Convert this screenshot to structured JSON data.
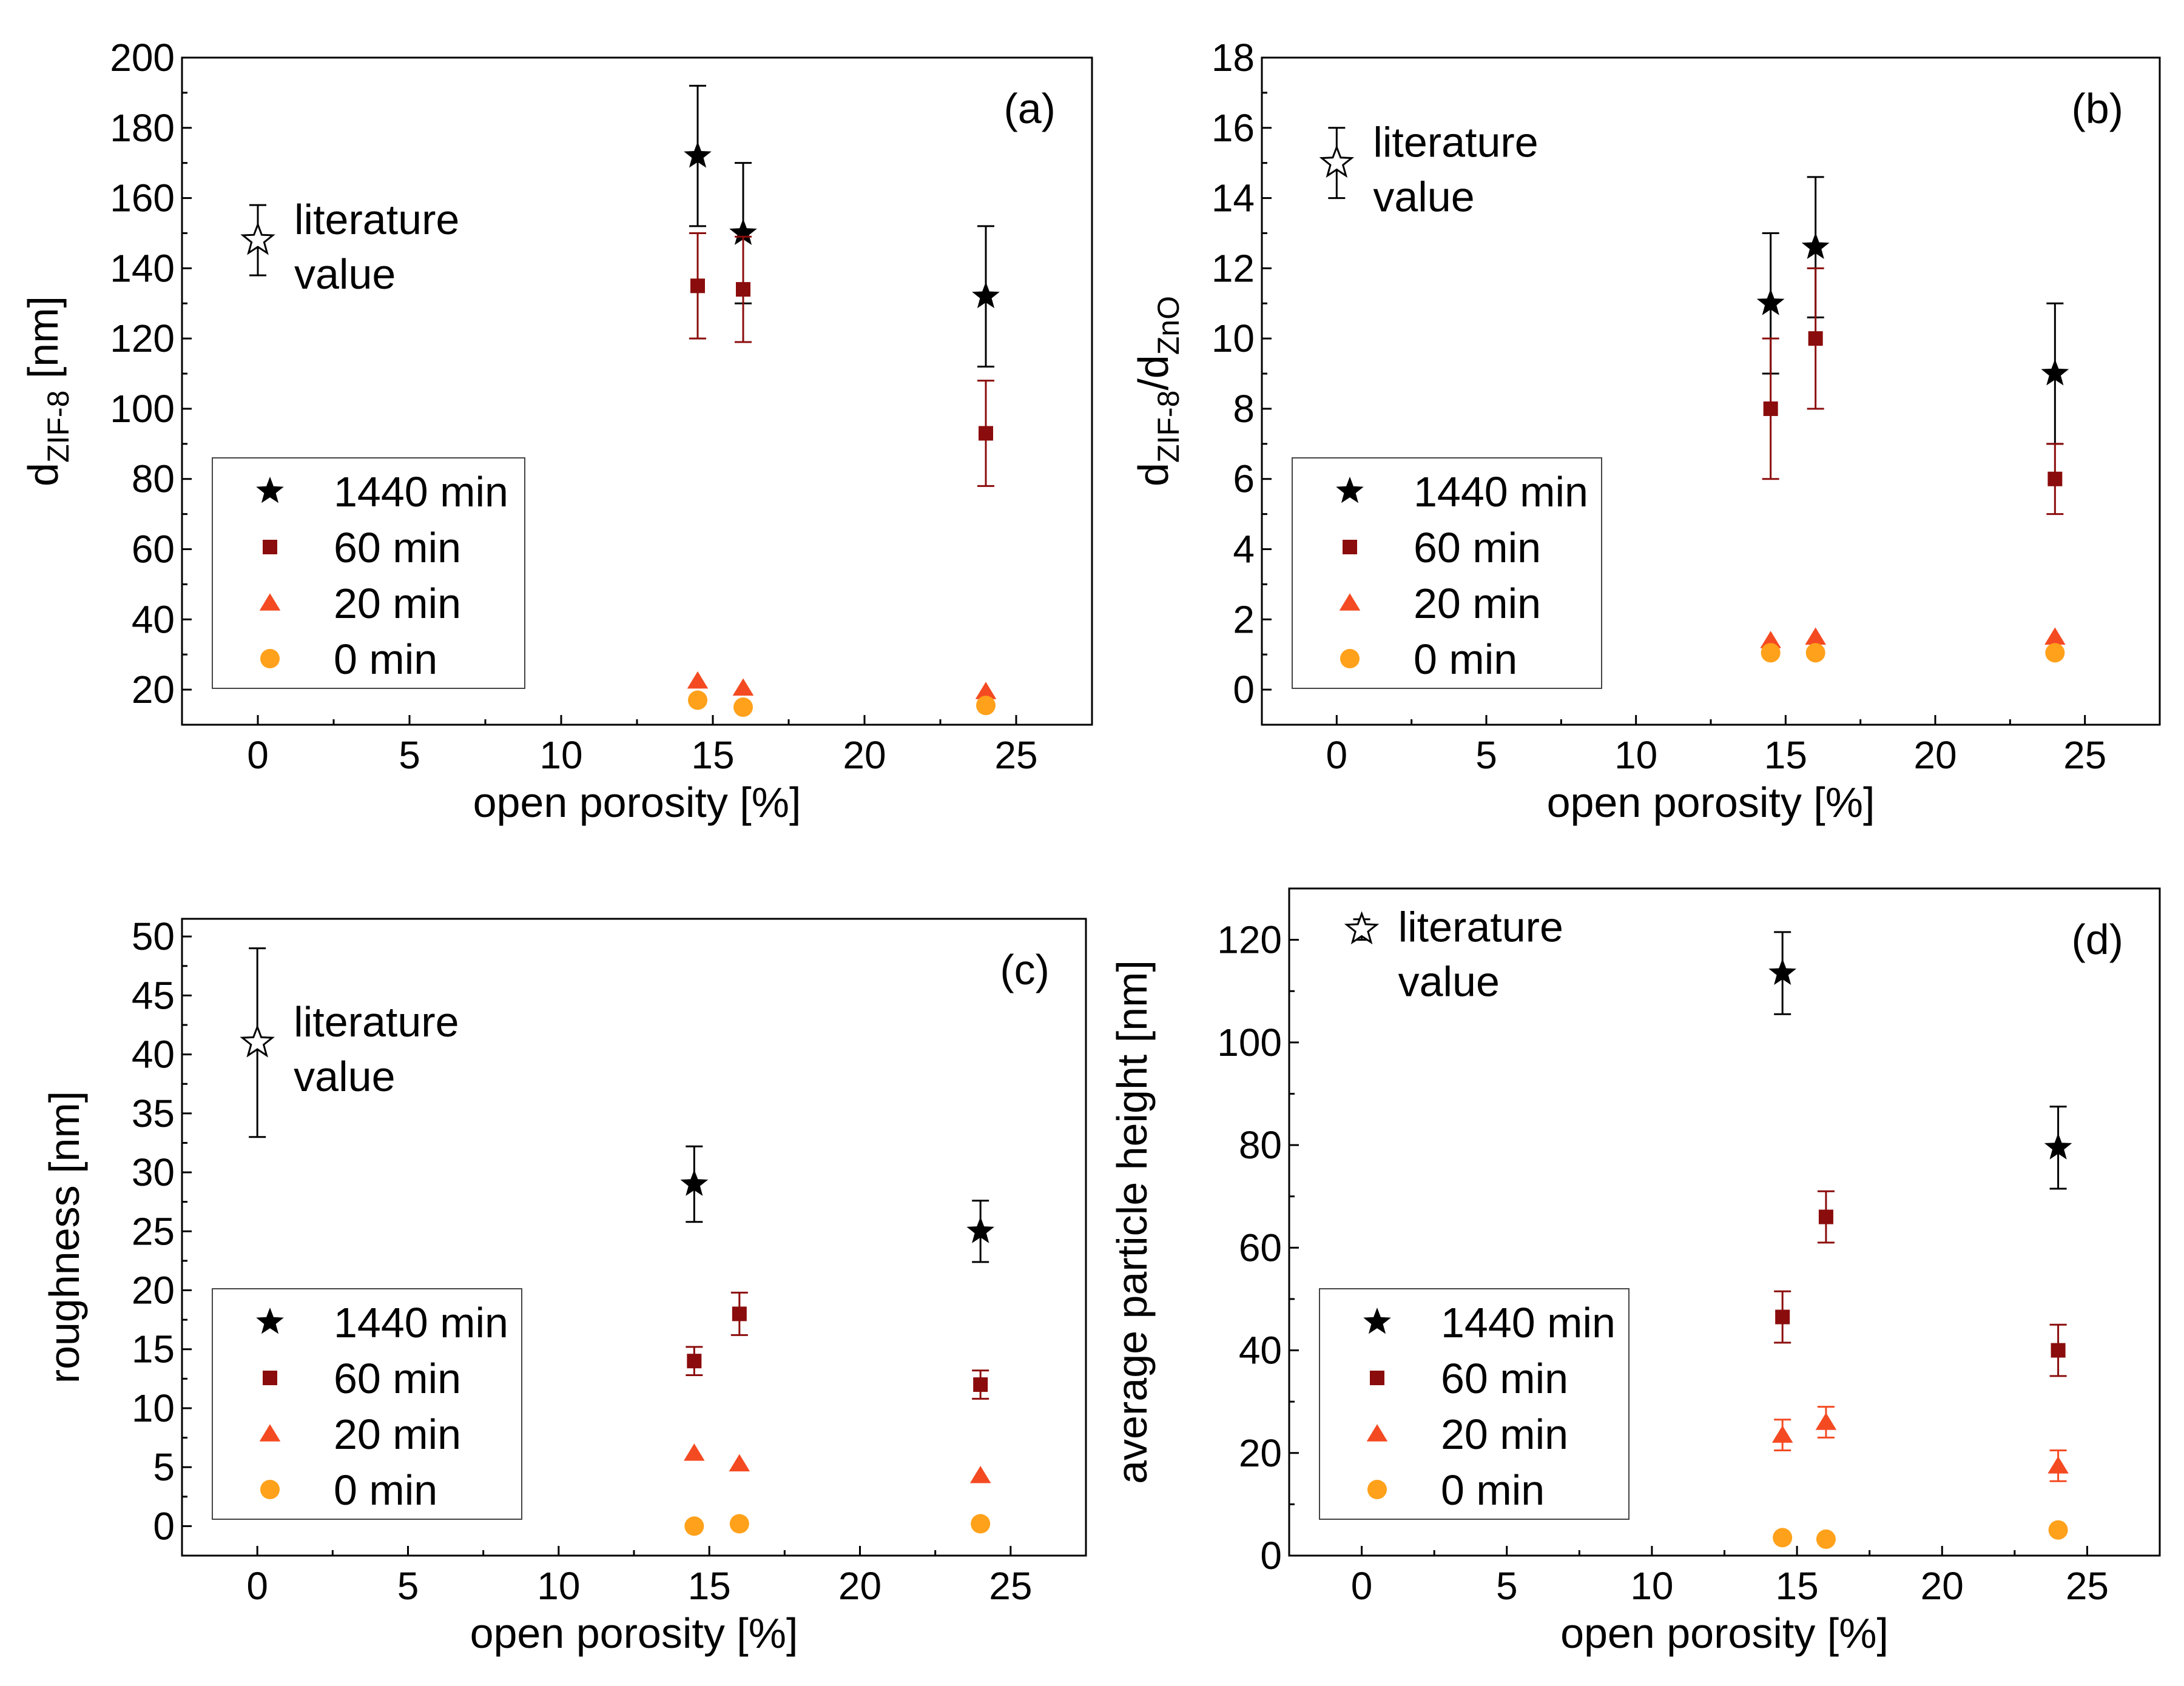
{
  "colors": {
    "1440": "#000000",
    "60": "#8b0c0c",
    "20": "#f44a22",
    "0": "#ffa11a",
    "axis": "#000000",
    "background": "#ffffff"
  },
  "chart_data": [
    {
      "type": "scatter",
      "panel": "(a)",
      "xlabel": "open porosity [%]",
      "ylabel": {
        "main": "d",
        "sub": "ZIF-8",
        "suffix": " [nm]"
      },
      "xlim": [
        -2.5,
        27.5
      ],
      "ylim": [
        10,
        200
      ],
      "xticks": [
        0,
        5,
        10,
        15,
        20,
        25
      ],
      "yticks": [
        20,
        40,
        60,
        80,
        100,
        120,
        140,
        160,
        180,
        200
      ],
      "legend_position": "lower-left",
      "literature": {
        "label_lines": [
          "literature",
          "value"
        ],
        "x": 0,
        "y": 148,
        "err": 10
      },
      "series": [
        {
          "name": "1440 min",
          "key": "1440",
          "marker": "star",
          "x": [
            14.5,
            16,
            24
          ],
          "y": [
            172,
            150,
            132
          ],
          "err": [
            20,
            20,
            20
          ]
        },
        {
          "name": "60 min",
          "key": "60",
          "marker": "square",
          "x": [
            14.5,
            16,
            24
          ],
          "y": [
            135,
            134,
            93
          ],
          "err": [
            15,
            15,
            15
          ]
        },
        {
          "name": "20 min",
          "key": "20",
          "marker": "triangle",
          "x": [
            14.5,
            16,
            24
          ],
          "y": [
            22.5,
            20.5,
            19.5
          ],
          "err": [
            null,
            null,
            null
          ]
        },
        {
          "name": "0 min",
          "key": "0",
          "marker": "circle",
          "x": [
            14.5,
            16,
            24
          ],
          "y": [
            17,
            15,
            15.5
          ],
          "err": [
            null,
            null,
            null
          ]
        }
      ]
    },
    {
      "type": "scatter",
      "panel": "(b)",
      "xlabel": "open porosity [%]",
      "ylabel": {
        "main": "d",
        "sub": "ZIF-8",
        "mid": "/d",
        "sub2": "ZnO",
        "suffix": ""
      },
      "xlim": [
        -2.5,
        27.5
      ],
      "ylim": [
        -1,
        18
      ],
      "xticks": [
        0,
        5,
        10,
        15,
        20,
        25
      ],
      "yticks": [
        0,
        2,
        4,
        6,
        8,
        10,
        12,
        14,
        16,
        18
      ],
      "legend_position": "lower-left",
      "literature": {
        "label_lines": [
          "literature",
          "value"
        ],
        "x": 0,
        "y": 15,
        "err": 1
      },
      "series": [
        {
          "name": "1440 min",
          "key": "1440",
          "marker": "star",
          "x": [
            14.5,
            16,
            24
          ],
          "y": [
            11,
            12.6,
            9
          ],
          "err": [
            2,
            2,
            2
          ]
        },
        {
          "name": "60 min",
          "key": "60",
          "marker": "square",
          "x": [
            14.5,
            16,
            24
          ],
          "y": [
            8,
            10,
            6
          ],
          "err": [
            2,
            2,
            1
          ]
        },
        {
          "name": "20 min",
          "key": "20",
          "marker": "triangle",
          "x": [
            14.5,
            16,
            24
          ],
          "y": [
            1.4,
            1.5,
            1.5
          ],
          "err": [
            null,
            null,
            null
          ]
        },
        {
          "name": "0 min",
          "key": "0",
          "marker": "circle",
          "x": [
            14.5,
            16,
            24
          ],
          "y": [
            1.05,
            1.05,
            1.05
          ],
          "err": [
            null,
            null,
            null
          ]
        }
      ]
    },
    {
      "type": "scatter",
      "panel": "(c)",
      "xlabel": "open porosity [%]",
      "ylabel": {
        "main": "roughness [nm]"
      },
      "xlim": [
        -2.5,
        27.5
      ],
      "ylim": [
        -2.5,
        51.5
      ],
      "xticks": [
        0,
        5,
        10,
        15,
        20,
        25
      ],
      "yticks": [
        0,
        5,
        10,
        15,
        20,
        25,
        30,
        35,
        40,
        45,
        50
      ],
      "legend_position": "lower-left",
      "literature": {
        "label_lines": [
          "literature",
          "value"
        ],
        "x": 0,
        "y": 41,
        "err": 8
      },
      "series": [
        {
          "name": "1440 min",
          "key": "1440",
          "marker": "star",
          "x": [
            14.5,
            24
          ],
          "y": [
            29,
            25
          ],
          "err": [
            3.2,
            2.6
          ]
        },
        {
          "name": "60 min",
          "key": "60",
          "marker": "square",
          "x": [
            14.5,
            16,
            24
          ],
          "y": [
            14,
            18,
            12
          ],
          "err": [
            1.2,
            1.8,
            1.2
          ]
        },
        {
          "name": "20 min",
          "key": "20",
          "marker": "triangle",
          "x": [
            14.5,
            16,
            24
          ],
          "y": [
            6.2,
            5.3,
            4.3
          ],
          "err": [
            null,
            null,
            null
          ]
        },
        {
          "name": "0 min",
          "key": "0",
          "marker": "circle",
          "x": [
            14.5,
            16,
            24
          ],
          "y": [
            0,
            0.2,
            0.2
          ],
          "err": [
            null,
            null,
            null
          ]
        }
      ]
    },
    {
      "type": "scatter",
      "panel": "(d)",
      "xlabel": "open porosity [%]",
      "ylabel": {
        "main": "average particle height [nm]"
      },
      "xlim": [
        -2.5,
        27.5
      ],
      "ylim": [
        0,
        130
      ],
      "xticks": [
        0,
        5,
        10,
        15,
        20,
        25
      ],
      "yticks": [
        0,
        20,
        40,
        60,
        80,
        100,
        120
      ],
      "legend_position": "lower-left",
      "literature": {
        "label_lines": [
          "literature",
          "value"
        ],
        "x": 0,
        "y": 122,
        "err": 2
      },
      "series": [
        {
          "name": "1440 min",
          "key": "1440",
          "marker": "star",
          "x": [
            14.5,
            24
          ],
          "y": [
            113.5,
            79.5
          ],
          "err": [
            8,
            8
          ]
        },
        {
          "name": "60 min",
          "key": "60",
          "marker": "square",
          "x": [
            14.5,
            16,
            24
          ],
          "y": [
            46.5,
            66,
            40
          ],
          "err": [
            5,
            5,
            5
          ]
        },
        {
          "name": "20 min",
          "key": "20",
          "marker": "triangle",
          "x": [
            14.5,
            16,
            24
          ],
          "y": [
            23.5,
            26,
            17.5
          ],
          "err": [
            3,
            3,
            3
          ]
        },
        {
          "name": "0 min",
          "key": "0",
          "marker": "circle",
          "x": [
            14.5,
            16,
            24
          ],
          "y": [
            3.5,
            3.2,
            5
          ],
          "err": [
            null,
            null,
            null
          ]
        }
      ]
    }
  ]
}
